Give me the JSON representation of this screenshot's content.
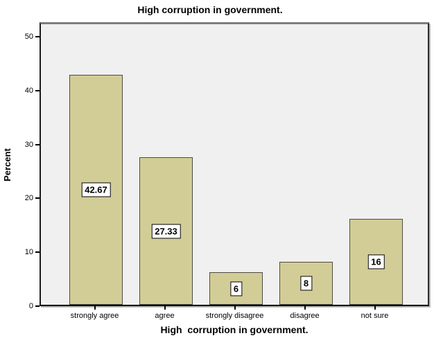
{
  "chart_data": {
    "type": "bar",
    "title": "High corruption in government.",
    "xlabel": "High  corruption in government.",
    "ylabel": "Percent",
    "categories": [
      "strongly agree",
      "agree",
      "strongly disagree",
      "disagree",
      "not sure"
    ],
    "values": [
      42.67,
      27.33,
      6,
      8,
      16
    ],
    "value_labels": [
      "42.67",
      "27.33",
      "6",
      "8",
      "16"
    ],
    "ylim": [
      0,
      52.7
    ],
    "yticks": [
      0,
      10,
      20,
      30,
      40,
      50
    ],
    "grid": false,
    "legend": "none",
    "bar_color": "#D2CD96",
    "bar_border_color": "#4D4A40",
    "plot_bg": "#F0F0F0",
    "label_box_bg": "#FFFFFF",
    "label_box_border": "#000000"
  }
}
